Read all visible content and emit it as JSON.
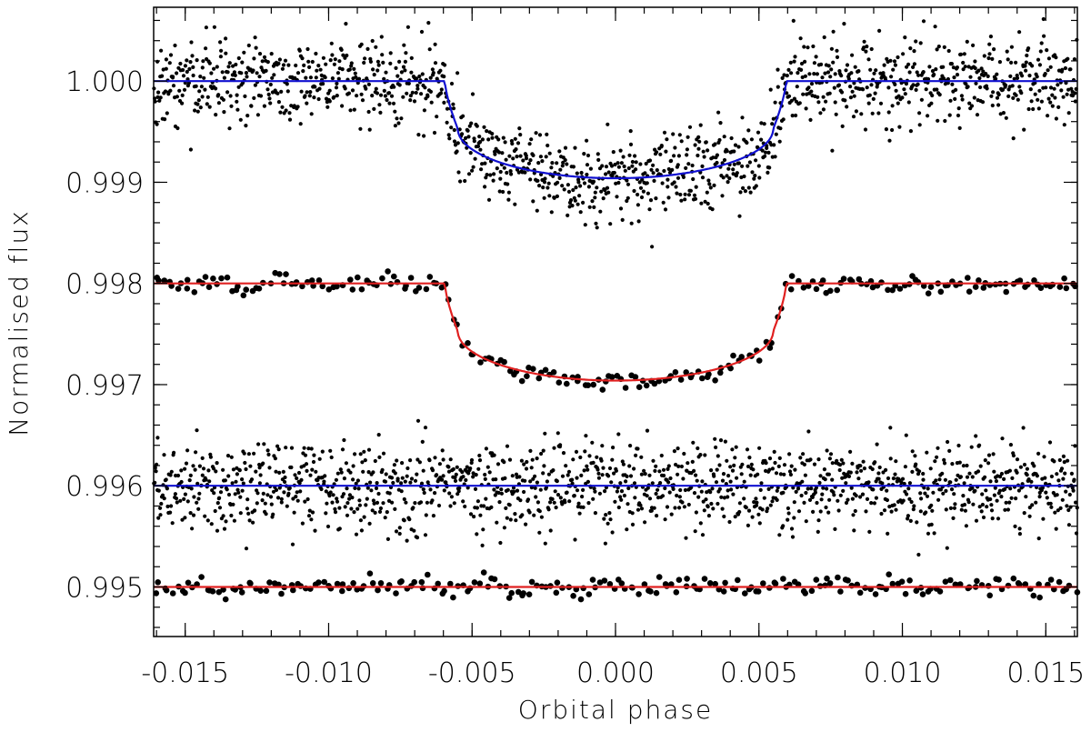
{
  "chart_data": {
    "type": "scatter",
    "xlabel": "Orbital phase",
    "ylabel": "Normalised flux",
    "xlim": [
      -0.0161,
      0.0161
    ],
    "ylim": [
      0.99451,
      1.00073
    ],
    "x_ticks": [
      -0.015,
      -0.01,
      -0.005,
      0.0,
      0.005,
      0.01,
      0.015
    ],
    "x_tick_labels": [
      "-0.015",
      "-0.010",
      "-0.005",
      "0.000",
      "0.005",
      "0.010",
      "0.015"
    ],
    "y_ticks": [
      1.0,
      0.999,
      0.998,
      0.997,
      0.996,
      0.995
    ],
    "y_tick_labels": [
      "1.000",
      "0.999",
      "0.998",
      "0.997",
      "0.996",
      "0.995"
    ],
    "x_minor_step": 0.001,
    "y_minor_step": 0.0002,
    "grid": false,
    "transit": {
      "ingress_start": -0.00595,
      "ingress_end": -0.0055,
      "egress_start": 0.0055,
      "egress_end": 0.00595
    },
    "series": [
      {
        "kind": "points",
        "role": "unbinned light curve",
        "offset": 0.0,
        "depth_edge": 0.00047,
        "depth_center": 0.00096,
        "scatter": 0.00021,
        "n": 1400,
        "marker": "small",
        "color": "#000000"
      },
      {
        "kind": "points",
        "role": "binned light curve",
        "offset": -0.002,
        "depth_edge": 0.00047,
        "depth_center": 0.00096,
        "scatter": 4e-05,
        "n": 220,
        "marker": "large",
        "color": "#000000"
      },
      {
        "kind": "points",
        "role": "unbinned residuals",
        "offset": -0.004,
        "depth_edge": 0.0,
        "depth_center": 0.0,
        "scatter": 0.00021,
        "n": 1400,
        "marker": "small",
        "color": "#000000"
      },
      {
        "kind": "points",
        "role": "binned residuals",
        "offset": -0.005,
        "depth_edge": 0.0,
        "depth_center": 0.0,
        "scatter": 4e-05,
        "n": 220,
        "marker": "large",
        "color": "#000000"
      },
      {
        "kind": "model",
        "role": "model fit",
        "offset": 0.0,
        "depth_edge": 0.00047,
        "depth_center": 0.00096,
        "color": "#1010d0"
      },
      {
        "kind": "model",
        "role": "model fit",
        "offset": -0.002,
        "depth_edge": 0.00047,
        "depth_center": 0.00096,
        "color": "#e02020"
      },
      {
        "kind": "model",
        "role": "baseline",
        "offset": -0.004,
        "depth_edge": 0.0,
        "depth_center": 0.0,
        "color": "#1010d0"
      },
      {
        "kind": "model",
        "role": "baseline",
        "offset": -0.005,
        "depth_edge": 0.0,
        "depth_center": 0.0,
        "color": "#e02020"
      }
    ]
  }
}
